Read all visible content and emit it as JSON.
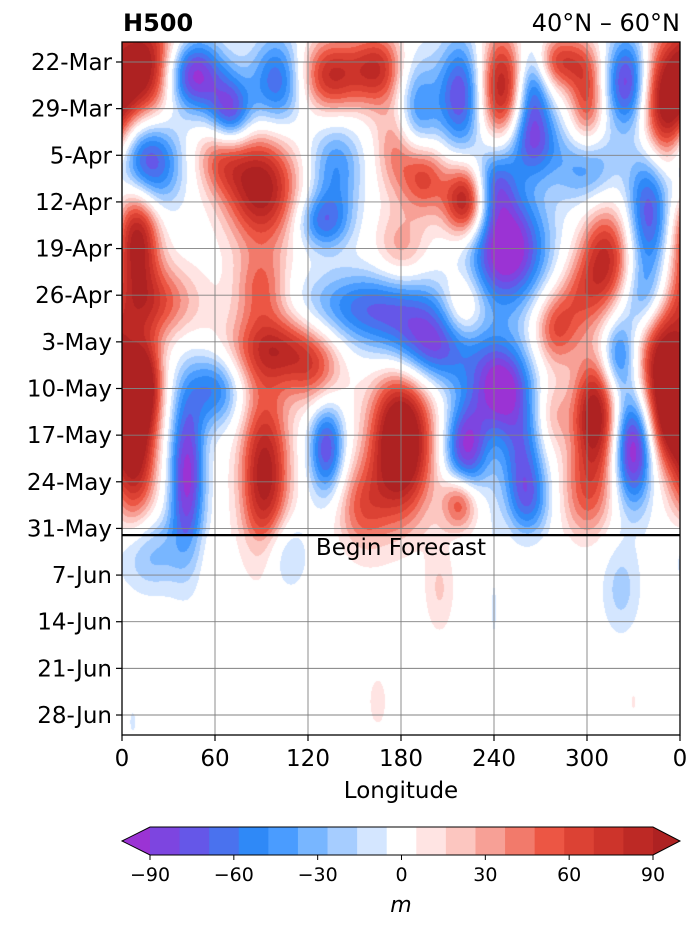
{
  "chart_data": {
    "type": "heatmap",
    "title_left": "H500",
    "title_right": "40°N – 60°N",
    "xlabel": "Longitude",
    "x_ticks": [
      "0",
      "60",
      "120",
      "180",
      "240",
      "300",
      "0"
    ],
    "x_tick_values": [
      0,
      60,
      120,
      180,
      240,
      300,
      360
    ],
    "xlim": [
      0,
      360
    ],
    "y_ticks": [
      "22-Mar",
      "29-Mar",
      "5-Apr",
      "12-Apr",
      "19-Apr",
      "26-Apr",
      "3-May",
      "10-May",
      "17-May",
      "24-May",
      "31-May",
      "7-Jun",
      "14-Jun",
      "21-Jun",
      "28-Jun"
    ],
    "y_tick_days": [
      0,
      7,
      14,
      21,
      28,
      35,
      42,
      49,
      56,
      63,
      70,
      77,
      84,
      91,
      98
    ],
    "ylim_days": [
      -3,
      101
    ],
    "y_inverted": true,
    "grid": true,
    "forecast_line_day": 71,
    "forecast_label": "Begin Forecast",
    "colorbar": {
      "label": "m",
      "ticks": [
        "−90",
        "−60",
        "−30",
        "0",
        "30",
        "60",
        "90"
      ],
      "tick_values": [
        -90,
        -60,
        -30,
        0,
        30,
        60,
        90
      ],
      "levels": [
        -100,
        -90,
        -80,
        -70,
        -60,
        -50,
        -40,
        -30,
        -20,
        -10,
        10,
        20,
        30,
        40,
        50,
        60,
        70,
        80,
        90,
        100
      ],
      "colors": [
        "#9b33d4",
        "#7d45e0",
        "#6557e8",
        "#4a72ee",
        "#2f89f7",
        "#4a9cff",
        "#78b6ff",
        "#a6cdff",
        "#d4e6ff",
        "#ffffff",
        "#ffe4e3",
        "#fcc6c0",
        "#f7a096",
        "#f27a6b",
        "#ec5644",
        "#dc4234",
        "#cd342b",
        "#bd2925",
        "#ae2222"
      ],
      "extend": "both"
    },
    "anomalies": [
      {
        "lon": 15,
        "day": 1,
        "value": 110,
        "sx": 16,
        "sy": 6
      },
      {
        "lon": 45,
        "day": 2,
        "value": -105,
        "sx": 14,
        "sy": 4
      },
      {
        "lon": 70,
        "day": 8,
        "value": -90,
        "sx": 10,
        "sy": 4
      },
      {
        "lon": 100,
        "day": 3,
        "value": -70,
        "sx": 12,
        "sy": 5
      },
      {
        "lon": 135,
        "day": 2,
        "value": 80,
        "sx": 14,
        "sy": 4
      },
      {
        "lon": 165,
        "day": 1,
        "value": 75,
        "sx": 12,
        "sy": 4
      },
      {
        "lon": 190,
        "day": 8,
        "value": -60,
        "sx": 10,
        "sy": 6
      },
      {
        "lon": 218,
        "day": 5,
        "value": -80,
        "sx": 10,
        "sy": 6
      },
      {
        "lon": 245,
        "day": 4,
        "value": 90,
        "sx": 10,
        "sy": 6
      },
      {
        "lon": 265,
        "day": 3,
        "value": -70,
        "sx": 8,
        "sy": 5
      },
      {
        "lon": 282,
        "day": 0,
        "value": 70,
        "sx": 14,
        "sy": 3
      },
      {
        "lon": 300,
        "day": 6,
        "value": 60,
        "sx": 8,
        "sy": 5
      },
      {
        "lon": 326,
        "day": 3,
        "value": -90,
        "sx": 10,
        "sy": 5
      },
      {
        "lon": 350,
        "day": 8,
        "value": 105,
        "sx": 12,
        "sy": 7
      },
      {
        "lon": 265,
        "day": 12,
        "value": -70,
        "sx": 12,
        "sy": 4
      },
      {
        "lon": 15,
        "day": 15,
        "value": -100,
        "sx": 15,
        "sy": 5
      },
      {
        "lon": 65,
        "day": 14,
        "value": 60,
        "sx": 12,
        "sy": 4
      },
      {
        "lon": 90,
        "day": 19,
        "value": 100,
        "sx": 16,
        "sy": 6
      },
      {
        "lon": 138,
        "day": 16,
        "value": -50,
        "sx": 12,
        "sy": 5
      },
      {
        "lon": 178,
        "day": 13,
        "value": 50,
        "sx": 10,
        "sy": 5
      },
      {
        "lon": 195,
        "day": 17,
        "value": 70,
        "sx": 10,
        "sy": 4
      },
      {
        "lon": 222,
        "day": 21,
        "value": 110,
        "sx": 10,
        "sy": 4
      },
      {
        "lon": 240,
        "day": 18,
        "value": -60,
        "sx": 10,
        "sy": 4
      },
      {
        "lon": 300,
        "day": 16,
        "value": -50,
        "sx": 14,
        "sy": 4
      },
      {
        "lon": 340,
        "day": 22,
        "value": -85,
        "sx": 10,
        "sy": 8
      },
      {
        "lon": 10,
        "day": 26,
        "value": 100,
        "sx": 10,
        "sy": 6
      },
      {
        "lon": 130,
        "day": 24,
        "value": -60,
        "sx": 12,
        "sy": 3
      },
      {
        "lon": 248,
        "day": 28,
        "value": -110,
        "sx": 18,
        "sy": 6
      },
      {
        "lon": 180,
        "day": 28,
        "value": 35,
        "sx": 12,
        "sy": 4
      },
      {
        "lon": 312,
        "day": 30,
        "value": 85,
        "sx": 12,
        "sy": 6
      },
      {
        "lon": 20,
        "day": 36,
        "value": 60,
        "sx": 20,
        "sy": 4
      },
      {
        "lon": 90,
        "day": 34,
        "value": 50,
        "sx": 12,
        "sy": 4
      },
      {
        "lon": 165,
        "day": 37,
        "value": -70,
        "sx": 35,
        "sy": 4
      },
      {
        "lon": 220,
        "day": 37,
        "value": 50,
        "sx": 10,
        "sy": 4
      },
      {
        "lon": 280,
        "day": 40,
        "value": 60,
        "sx": 10,
        "sy": 4
      },
      {
        "lon": 295,
        "day": 35,
        "value": 35,
        "sx": 10,
        "sy": 4
      },
      {
        "lon": 340,
        "day": 36,
        "value": -55,
        "sx": 14,
        "sy": 4
      },
      {
        "lon": 100,
        "day": 43,
        "value": 80,
        "sx": 22,
        "sy": 4
      },
      {
        "lon": 200,
        "day": 43,
        "value": -80,
        "sx": 22,
        "sy": 4
      },
      {
        "lon": 350,
        "day": 45,
        "value": 110,
        "sx": 12,
        "sy": 8
      },
      {
        "lon": 15,
        "day": 48,
        "value": 80,
        "sx": 8,
        "sy": 5
      },
      {
        "lon": 60,
        "day": 49,
        "value": -60,
        "sx": 12,
        "sy": 4
      },
      {
        "lon": 125,
        "day": 47,
        "value": 40,
        "sx": 12,
        "sy": 4
      },
      {
        "lon": 245,
        "day": 49,
        "value": -100,
        "sx": 14,
        "sy": 5
      },
      {
        "lon": 305,
        "day": 53,
        "value": 105,
        "sx": 10,
        "sy": 6
      },
      {
        "lon": 320,
        "day": 44,
        "value": -60,
        "sx": 8,
        "sy": 4
      },
      {
        "lon": 8,
        "day": 58,
        "value": 100,
        "sx": 10,
        "sy": 8
      },
      {
        "lon": 42,
        "day": 62,
        "value": -95,
        "sx": 8,
        "sy": 9
      },
      {
        "lon": 92,
        "day": 62,
        "value": 100,
        "sx": 11,
        "sy": 9
      },
      {
        "lon": 132,
        "day": 58,
        "value": -80,
        "sx": 8,
        "sy": 5
      },
      {
        "lon": 180,
        "day": 57,
        "value": 130,
        "sx": 14,
        "sy": 8
      },
      {
        "lon": 222,
        "day": 58,
        "value": -90,
        "sx": 10,
        "sy": 5
      },
      {
        "lon": 258,
        "day": 59,
        "value": -55,
        "sx": 10,
        "sy": 5
      },
      {
        "lon": 278,
        "day": 53,
        "value": 30,
        "sx": 8,
        "sy": 4
      },
      {
        "lon": 330,
        "day": 58,
        "value": -105,
        "sx": 9,
        "sy": 6
      },
      {
        "lon": 352,
        "day": 54,
        "value": 45,
        "sx": 8,
        "sy": 5
      },
      {
        "lon": 155,
        "day": 67,
        "value": 50,
        "sx": 12,
        "sy": 5
      },
      {
        "lon": 218,
        "day": 66,
        "value": 70,
        "sx": 8,
        "sy": 3
      },
      {
        "lon": 262,
        "day": 66,
        "value": -55,
        "sx": 10,
        "sy": 4
      },
      {
        "lon": 300,
        "day": 65,
        "value": 50,
        "sx": 12,
        "sy": 5
      },
      {
        "lon": 18,
        "day": 74,
        "value": -50,
        "sx": 15,
        "sy": 4
      },
      {
        "lon": 105,
        "day": 74,
        "value": -40,
        "sx": 10,
        "sy": 4
      },
      {
        "lon": 60,
        "day": 77,
        "value": 15,
        "sx": 6,
        "sy": 4
      },
      {
        "lon": 205,
        "day": 79,
        "value": 30,
        "sx": 7,
        "sy": 5
      },
      {
        "lon": 240,
        "day": 82,
        "value": -15,
        "sx": 4,
        "sy": 10
      },
      {
        "lon": 322,
        "day": 79,
        "value": -35,
        "sx": 9,
        "sy": 5
      },
      {
        "lon": 165,
        "day": 96,
        "value": 15,
        "sx": 15,
        "sy": 10
      },
      {
        "lon": 7,
        "day": 99,
        "value": -15,
        "sx": 5,
        "sy": 4
      },
      {
        "lon": 330,
        "day": 96,
        "value": 15,
        "sx": 4,
        "sy": 3
      }
    ]
  }
}
